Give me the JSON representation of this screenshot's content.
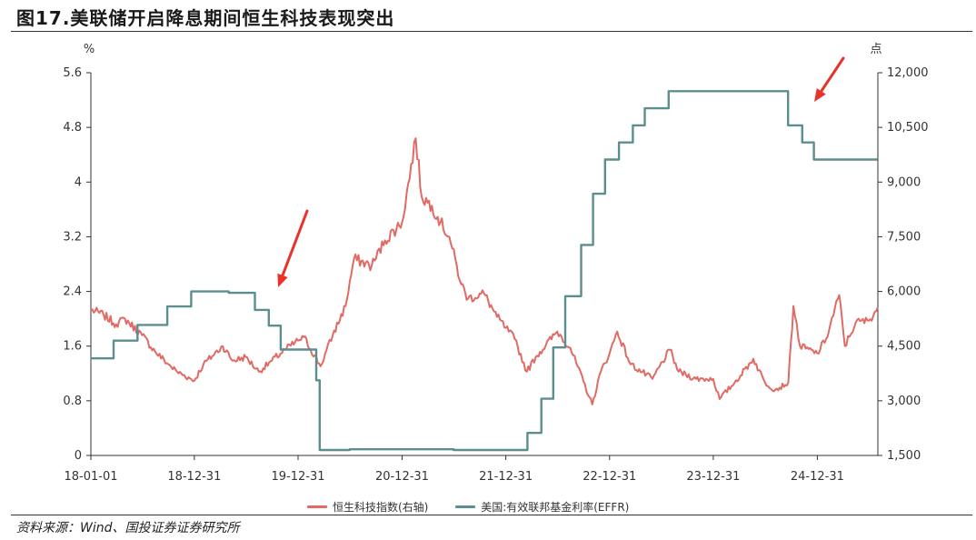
{
  "title": "图17.美联储开启降息期间恒生科技表现突出",
  "source": "资料来源：Wind、国投证券证券研究所",
  "chart_data": {
    "type": "line",
    "y_left_unit": "%",
    "y_right_unit": "点",
    "x_ticks": [
      "18-01-01",
      "18-12-31",
      "19-12-31",
      "20-12-31",
      "21-12-31",
      "22-12-31",
      "23-12-31",
      "24-12-31"
    ],
    "y_left_ticks": [
      "0",
      "0.8",
      "1.6",
      "2.4",
      "3.2",
      "4",
      "4.8",
      "5.6"
    ],
    "y_right_ticks": [
      "1,500",
      "3,000",
      "4,500",
      "6,000",
      "7,500",
      "9,000",
      "10,500",
      "12,000"
    ],
    "x_range": [
      "2018-01-01",
      "2025-08-01"
    ],
    "y_left_range": [
      0,
      5.6
    ],
    "y_right_range": [
      1500,
      12000
    ],
    "grid": false,
    "legend_position": "bottom",
    "series": [
      {
        "name": "恒生科技指数(右轴)",
        "axis": "right",
        "color": "#e06a64",
        "points": [
          [
            "2018-01-01",
            5500
          ],
          [
            "2018-02-15",
            5350
          ],
          [
            "2018-03-31",
            5100
          ],
          [
            "2018-05-01",
            5250
          ],
          [
            "2018-06-30",
            4800
          ],
          [
            "2018-08-15",
            4350
          ],
          [
            "2018-10-01",
            4000
          ],
          [
            "2018-10-31",
            3800
          ],
          [
            "2018-12-31",
            3550
          ],
          [
            "2019-02-01",
            4000
          ],
          [
            "2019-04-10",
            4500
          ],
          [
            "2019-05-15",
            4100
          ],
          [
            "2019-06-30",
            4200
          ],
          [
            "2019-08-15",
            3800
          ],
          [
            "2019-09-30",
            4100
          ],
          [
            "2019-11-15",
            4400
          ],
          [
            "2019-12-31",
            4650
          ],
          [
            "2020-01-20",
            4750
          ],
          [
            "2020-03-19",
            3950
          ],
          [
            "2020-05-01",
            4800
          ],
          [
            "2020-06-15",
            5600
          ],
          [
            "2020-07-15",
            6900
          ],
          [
            "2020-09-15",
            6700
          ],
          [
            "2020-11-01",
            7400
          ],
          [
            "2020-12-31",
            7900
          ],
          [
            "2021-02-17",
            10200
          ],
          [
            "2021-03-10",
            8600
          ],
          [
            "2021-04-15",
            8350
          ],
          [
            "2021-05-15",
            7900
          ],
          [
            "2021-06-15",
            7500
          ],
          [
            "2021-07-27",
            6200
          ],
          [
            "2021-08-20",
            5800
          ],
          [
            "2021-10-15",
            5950
          ],
          [
            "2021-11-30",
            5300
          ],
          [
            "2021-12-31",
            5000
          ],
          [
            "2022-01-31",
            4700
          ],
          [
            "2022-03-15",
            3800
          ],
          [
            "2022-04-15",
            4200
          ],
          [
            "2022-06-30",
            4900
          ],
          [
            "2022-08-15",
            4450
          ],
          [
            "2022-10-31",
            2900
          ],
          [
            "2022-11-30",
            3800
          ],
          [
            "2022-12-31",
            4300
          ],
          [
            "2023-01-27",
            4900
          ],
          [
            "2023-03-15",
            4000
          ],
          [
            "2023-05-31",
            3600
          ],
          [
            "2023-07-31",
            4400
          ],
          [
            "2023-08-31",
            3800
          ],
          [
            "2023-10-31",
            3600
          ],
          [
            "2023-12-31",
            3600
          ],
          [
            "2024-01-22",
            3050
          ],
          [
            "2024-03-15",
            3500
          ],
          [
            "2024-05-20",
            4150
          ],
          [
            "2024-06-30",
            3500
          ],
          [
            "2024-08-05",
            3300
          ],
          [
            "2024-09-20",
            3500
          ],
          [
            "2024-10-08",
            5600
          ],
          [
            "2024-10-31",
            4500
          ],
          [
            "2024-12-31",
            4300
          ],
          [
            "2025-01-31",
            4700
          ],
          [
            "2025-03-18",
            5900
          ],
          [
            "2025-04-07",
            4500
          ],
          [
            "2025-05-15",
            5150
          ],
          [
            "2025-06-30",
            5200
          ],
          [
            "2025-07-31",
            5550
          ]
        ]
      },
      {
        "name": "美国:有效联邦基金利率(EFFR)",
        "axis": "left",
        "color": "#5b8e8e",
        "points": [
          [
            "2018-01-01",
            1.42
          ],
          [
            "2018-03-22",
            1.68
          ],
          [
            "2018-06-14",
            1.91
          ],
          [
            "2018-09-27",
            2.18
          ],
          [
            "2018-12-20",
            2.4
          ],
          [
            "2019-05-01",
            2.38
          ],
          [
            "2019-08-01",
            2.13
          ],
          [
            "2019-09-19",
            1.9
          ],
          [
            "2019-10-31",
            1.55
          ],
          [
            "2020-03-04",
            1.1
          ],
          [
            "2020-03-16",
            0.08
          ],
          [
            "2020-06-30",
            0.09
          ],
          [
            "2021-06-30",
            0.08
          ],
          [
            "2021-12-31",
            0.08
          ],
          [
            "2022-03-17",
            0.33
          ],
          [
            "2022-05-05",
            0.83
          ],
          [
            "2022-06-16",
            1.58
          ],
          [
            "2022-07-28",
            2.33
          ],
          [
            "2022-09-22",
            3.08
          ],
          [
            "2022-11-03",
            3.83
          ],
          [
            "2022-12-15",
            4.33
          ],
          [
            "2023-02-02",
            4.58
          ],
          [
            "2023-03-23",
            4.83
          ],
          [
            "2023-05-04",
            5.08
          ],
          [
            "2023-07-27",
            5.33
          ],
          [
            "2024-09-19",
            4.83
          ],
          [
            "2024-11-08",
            4.58
          ],
          [
            "2024-12-19",
            4.33
          ],
          [
            "2025-07-31",
            4.33
          ]
        ]
      }
    ],
    "annotations": [
      "arrow",
      "arrow",
      "arrow"
    ]
  },
  "colors": {
    "line_index": "#e06a64",
    "line_rate": "#5b8e8e",
    "axis": "#333333",
    "arrow": "#e8322a"
  }
}
